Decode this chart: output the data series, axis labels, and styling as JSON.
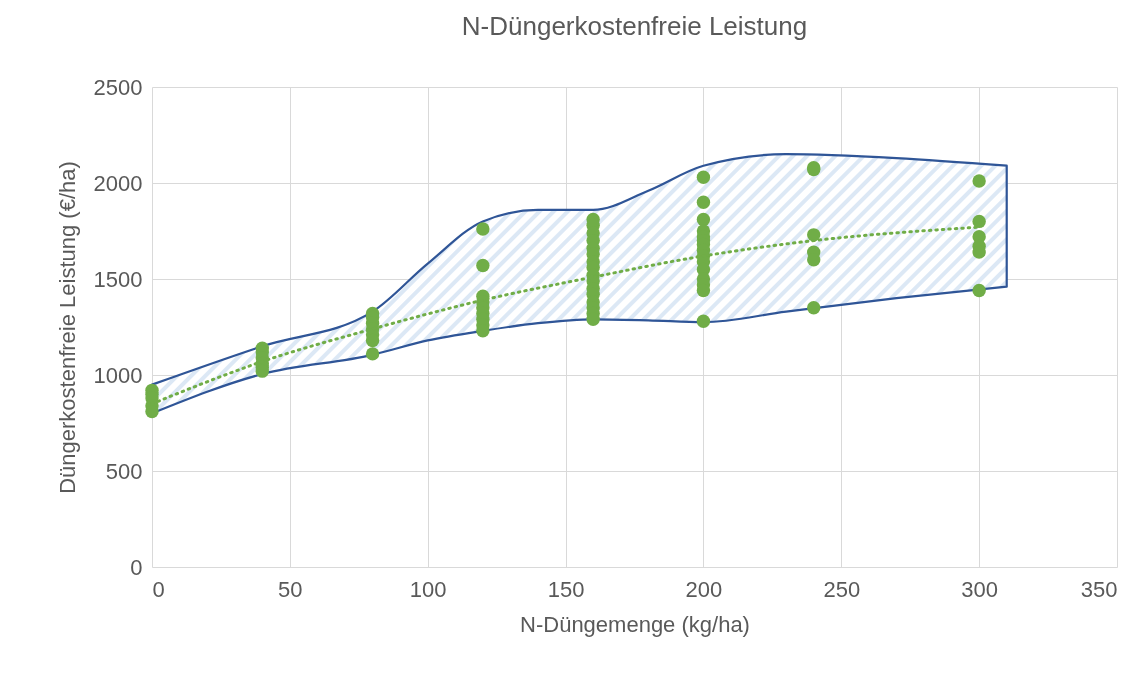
{
  "chart_data": {
    "type": "scatter",
    "title": "N-Düngerkostenfreie Leistung",
    "xlabel": "N-Düngemenge (kg/ha)",
    "ylabel": "Düngerkostenfreie Leistung (€/ha)",
    "xlim": [
      0,
      350
    ],
    "xticks": [
      0,
      50,
      100,
      150,
      200,
      250,
      300,
      350
    ],
    "ylim": [
      0,
      2500
    ],
    "yticks": [
      0,
      500,
      1000,
      1500,
      2000,
      2500
    ],
    "grid": true,
    "marker": "circle",
    "series": [
      {
        "type": "area",
        "color": "#2f5597",
        "x": [
          0,
          40,
          80,
          100,
          120,
          140,
          160,
          180,
          200,
          230,
          270,
          310
        ],
        "values": [
          null,
          null,
          null,
          null,
          null,
          null,
          null,
          null,
          null,
          null,
          null,
          null
        ],
        "upper": [
          950,
          1150,
          1330,
          1580,
          1800,
          1860,
          1860,
          1960,
          2090,
          2150,
          2130,
          2090
        ],
        "lower": [
          800,
          1005,
          1105,
          1180,
          1230,
          1270,
          1290,
          1285,
          1275,
          1330,
          1400,
          1460
        ]
      },
      {
        "color": "#70ad47",
        "x": [
          0,
          0,
          0,
          0,
          0,
          40,
          40,
          40,
          40,
          40,
          40,
          80,
          80,
          80,
          80,
          80,
          80,
          80,
          120,
          120,
          120,
          120,
          120,
          120,
          120,
          120,
          120,
          160,
          160,
          160,
          160,
          160,
          160,
          160,
          160,
          160,
          160,
          160,
          160,
          160,
          160,
          160,
          160,
          200,
          200,
          200,
          200,
          200,
          200,
          200,
          200,
          200,
          200,
          200,
          200,
          200,
          200,
          200,
          240,
          240,
          240,
          240,
          240,
          240,
          300,
          300,
          300,
          300,
          300,
          300
        ],
        "values": [
          920,
          900,
          880,
          840,
          810,
          1140,
          1120,
          1090,
          1060,
          1040,
          1020,
          1320,
          1300,
          1270,
          1240,
          1210,
          1180,
          1110,
          1760,
          1570,
          1410,
          1380,
          1350,
          1320,
          1290,
          1260,
          1230,
          1810,
          1780,
          1740,
          1700,
          1660,
          1630,
          1590,
          1560,
          1520,
          1490,
          1450,
          1420,
          1380,
          1350,
          1320,
          1290,
          2030,
          1900,
          1810,
          1750,
          1720,
          1700,
          1680,
          1650,
          1620,
          1590,
          1550,
          1500,
          1470,
          1440,
          1280,
          2080,
          2070,
          1730,
          1640,
          1600,
          1350,
          2010,
          1800,
          1720,
          1670,
          1640,
          1440
        ]
      },
      {
        "type": "line",
        "color": "#70ad47",
        "line_style": "dotted",
        "marker": "none",
        "x": [
          0,
          40,
          80,
          120,
          160,
          200,
          240,
          300
        ],
        "values": [
          850,
          1070,
          1240,
          1390,
          1510,
          1620,
          1700,
          1770
        ]
      }
    ]
  }
}
